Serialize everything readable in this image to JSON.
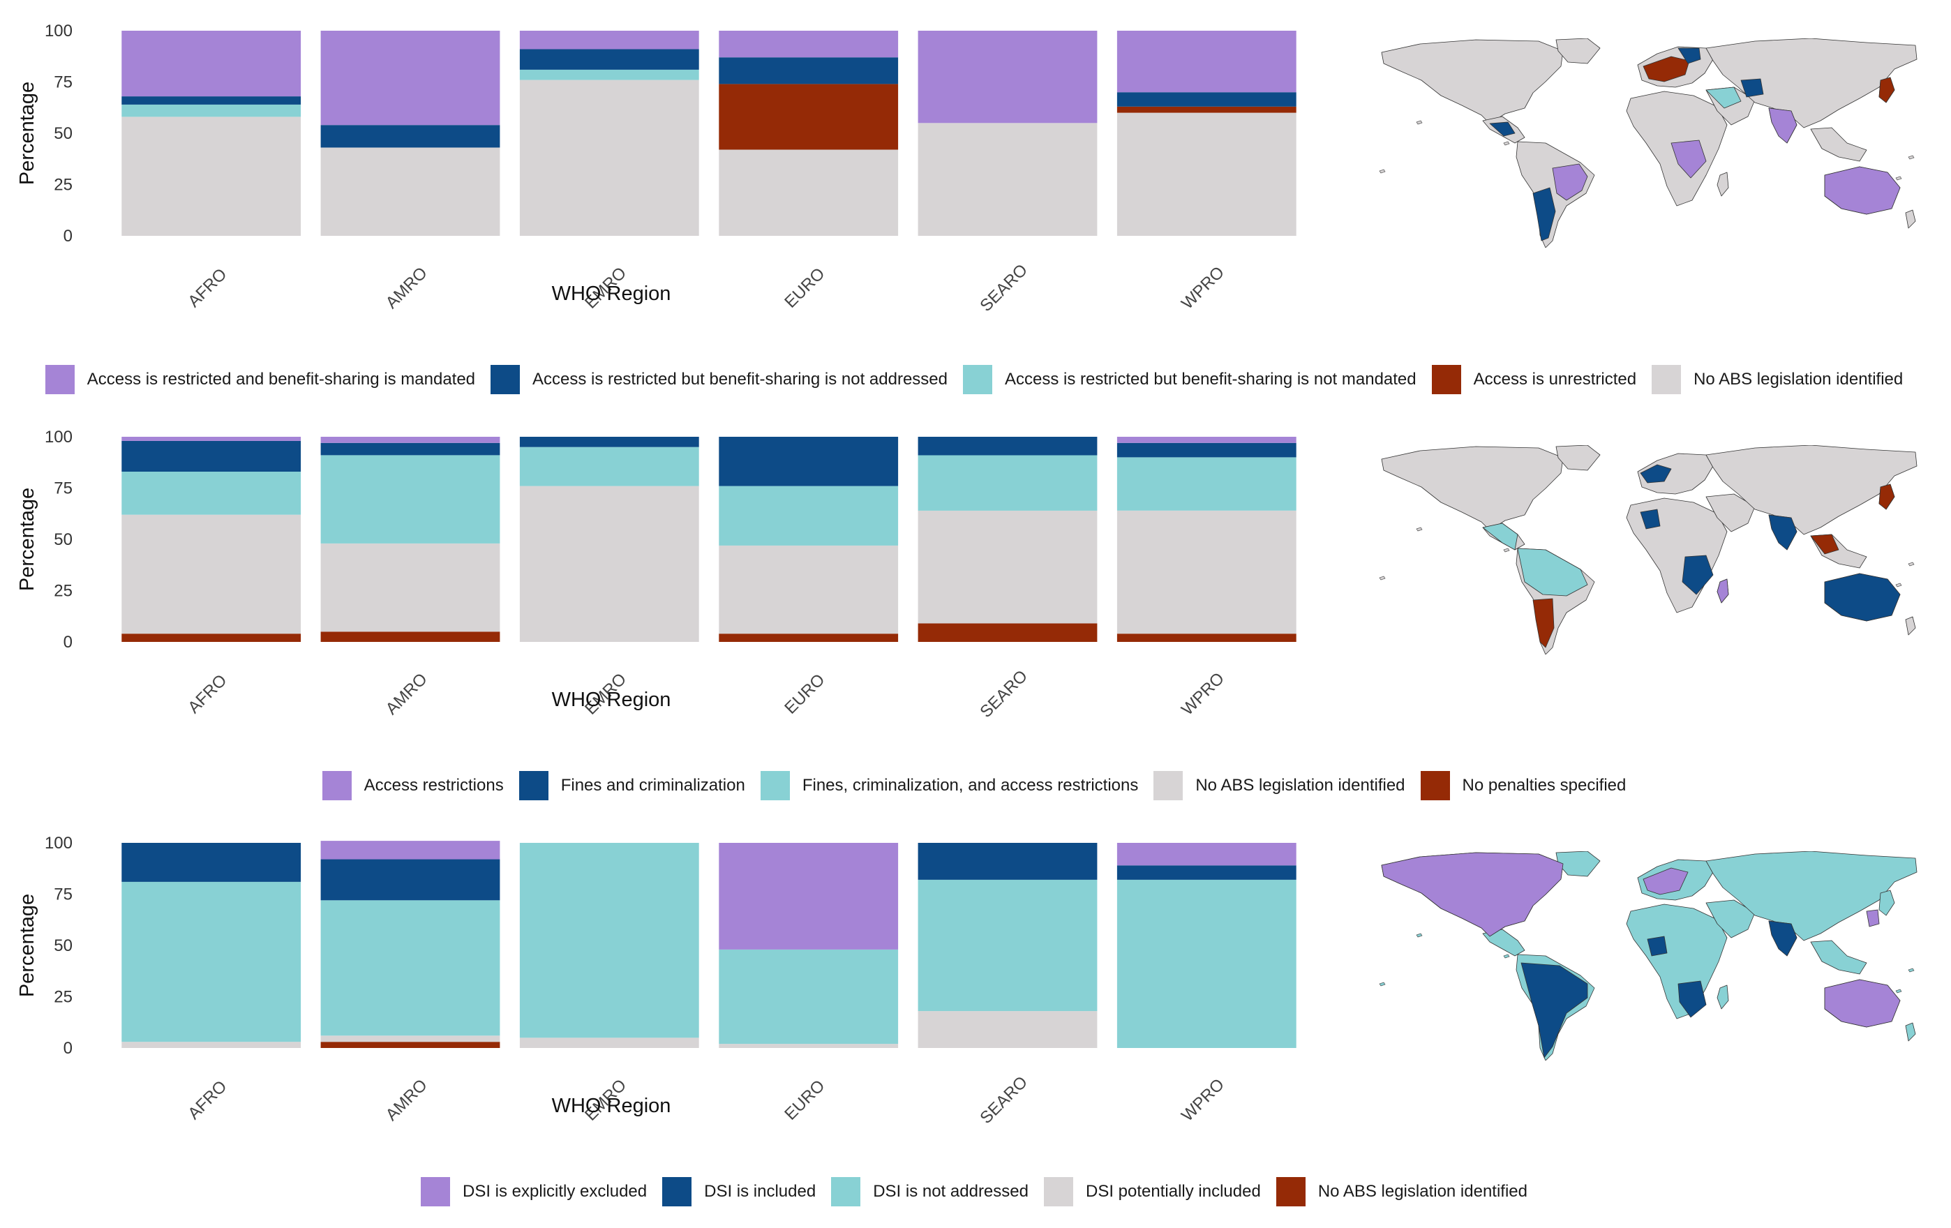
{
  "colors": {
    "purple": "#A584D6",
    "navy": "#0D4B87",
    "teal": "#88D1D4",
    "rust": "#952A06",
    "grey": "#D7D4D5"
  },
  "chart_data": [
    {
      "type": "bar",
      "stacked": true,
      "xlabel": "WHO Region",
      "ylabel": "Percentage",
      "ylim": [
        0,
        100
      ],
      "yticks": [
        "0",
        "25",
        "50",
        "75",
        "100"
      ],
      "categories": [
        "AFRO",
        "AMRO",
        "EMRO",
        "EURO",
        "SEARO",
        "WPRO"
      ],
      "stack_order": [
        "No ABS legislation identified",
        "Access is unrestricted",
        "Access is restricted but benefit-sharing is not mandated",
        "Access is restricted but benefit-sharing is not addressed",
        "Access is restricted and benefit-sharing is mandated"
      ],
      "series": [
        {
          "name": "Access is restricted and benefit-sharing is mandated",
          "color": "#A584D6",
          "values": [
            32,
            46,
            9,
            13,
            45,
            30
          ]
        },
        {
          "name": "Access is restricted but benefit-sharing is not addressed",
          "color": "#0D4B87",
          "values": [
            4,
            11,
            10,
            13,
            0,
            7
          ]
        },
        {
          "name": "Access is restricted but benefit-sharing is not mandated",
          "color": "#88D1D4",
          "values": [
            6,
            0,
            5,
            0,
            0,
            0
          ]
        },
        {
          "name": "Access is unrestricted",
          "color": "#952A06",
          "values": [
            0,
            0,
            0,
            32,
            0,
            3
          ]
        },
        {
          "name": "No ABS legislation identified",
          "color": "#D7D4D5",
          "values": [
            58,
            43,
            76,
            42,
            55,
            60
          ]
        }
      ]
    },
    {
      "type": "bar",
      "stacked": true,
      "xlabel": "WHO Region",
      "ylabel": "Percentage",
      "ylim": [
        0,
        100
      ],
      "yticks": [
        "0",
        "25",
        "50",
        "75",
        "100"
      ],
      "categories": [
        "AFRO",
        "AMRO",
        "EMRO",
        "EURO",
        "SEARO",
        "WPRO"
      ],
      "stack_order": [
        "No penalties specified",
        "No ABS legislation identified",
        "Fines, criminalization, and access restrictions",
        "Fines and criminalization",
        "Access restrictions"
      ],
      "series": [
        {
          "name": "Access restrictions",
          "color": "#A584D6",
          "values": [
            2,
            3,
            0,
            0,
            0,
            3
          ]
        },
        {
          "name": "Fines and criminalization",
          "color": "#0D4B87",
          "values": [
            15,
            6,
            5,
            24,
            9,
            7
          ]
        },
        {
          "name": "Fines, criminalization, and access restrictions",
          "color": "#88D1D4",
          "values": [
            21,
            43,
            19,
            29,
            27,
            26
          ]
        },
        {
          "name": "No ABS legislation identified",
          "color": "#D7D4D5",
          "values": [
            58,
            43,
            76,
            43,
            55,
            60
          ]
        },
        {
          "name": "No penalties specified",
          "color": "#952A06",
          "values": [
            4,
            5,
            0,
            4,
            9,
            4
          ]
        }
      ]
    },
    {
      "type": "bar",
      "stacked": true,
      "xlabel": "WHO Region",
      "ylabel": "Percentage",
      "ylim": [
        0,
        100
      ],
      "yticks": [
        "0",
        "25",
        "50",
        "75",
        "100"
      ],
      "categories": [
        "AFRO",
        "AMRO",
        "EMRO",
        "EURO",
        "SEARO",
        "WPRO"
      ],
      "stack_order": [
        "No ABS legislation identified",
        "DSI potentially included",
        "DSI is not addressed",
        "DSI is included",
        "DSI is explicitly excluded"
      ],
      "series": [
        {
          "name": "DSI is explicitly excluded",
          "color": "#A584D6",
          "values": [
            0,
            9,
            0,
            52,
            0,
            11
          ]
        },
        {
          "name": "DSI is included",
          "color": "#0D4B87",
          "values": [
            19,
            20,
            0,
            0,
            18,
            7
          ]
        },
        {
          "name": "DSI is not addressed",
          "color": "#88D1D4",
          "values": [
            78,
            66,
            95,
            46,
            64,
            82
          ]
        },
        {
          "name": "DSI potentially included",
          "color": "#D7D4D5",
          "values": [
            3,
            3,
            5,
            2,
            18,
            0
          ]
        },
        {
          "name": "No ABS legislation identified",
          "color": "#952A06",
          "values": [
            0,
            3,
            0,
            0,
            0,
            0
          ]
        }
      ]
    }
  ],
  "legends": [
    [
      "Access is restricted and benefit-sharing is mandated",
      "Access is restricted but benefit-sharing is not addressed",
      "Access is restricted but benefit-sharing is not mandated",
      "Access is unrestricted",
      "No ABS legislation identified"
    ],
    [
      "Access restrictions",
      "Fines and criminalization",
      "Fines, criminalization, and access restrictions",
      "No ABS legislation identified",
      "No penalties specified"
    ],
    [
      "DSI is explicitly excluded",
      "DSI is included",
      "DSI is not addressed",
      "DSI potentially included",
      "No ABS legislation identified"
    ]
  ],
  "maps": [
    {
      "fill": "#D7D4D5",
      "region_colors": [
        "#A584D6",
        "#0D4B87",
        "#88D1D4",
        "#952A06",
        "#D7D4D5"
      ]
    },
    {
      "fill": "#D7D4D5",
      "region_colors": [
        "#A584D6",
        "#0D4B87",
        "#88D1D4",
        "#952A06",
        "#D7D4D5"
      ]
    },
    {
      "fill": "#88D1D4",
      "region_colors": [
        "#A584D6",
        "#0D4B87",
        "#88D1D4",
        "#952A06",
        "#D7D4D5"
      ]
    }
  ]
}
